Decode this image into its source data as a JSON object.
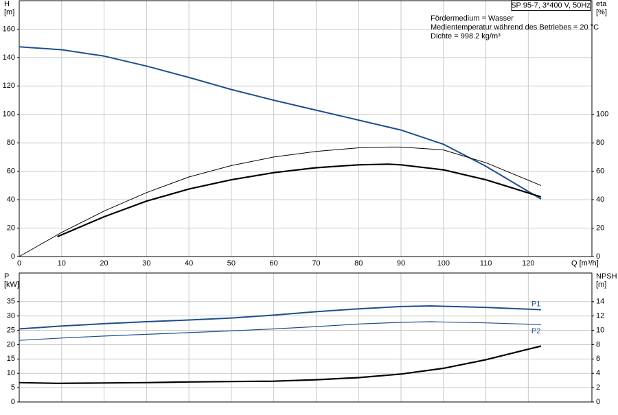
{
  "chart_data": [
    {
      "type": "line",
      "ylabel": [
        "H",
        "[m]"
      ],
      "y2label": [
        "eta",
        "[%]"
      ],
      "xlabel": "Q [m³/h]",
      "info_box": "SP 95-7, 3*400 V, 50Hz",
      "annotations": [
        "Fördermedium = Wasser",
        "Medientemperatur während des Betriebes = 20 °C",
        "Dichte = 998.2 kg/m³"
      ],
      "xlim": [
        0,
        135
      ],
      "xticks": [
        0,
        10,
        20,
        30,
        40,
        50,
        60,
        70,
        80,
        90,
        100,
        110,
        120
      ],
      "ylim": [
        0,
        180
      ],
      "yticks": [
        0,
        20,
        40,
        60,
        80,
        100,
        120,
        140,
        160
      ],
      "y2lim": [
        0,
        180
      ],
      "y2ticks": [
        0,
        20,
        40,
        60,
        80,
        100
      ],
      "grid": true,
      "series": [
        {
          "color": "#1f4e8c",
          "line_width": 2,
          "x": [
            0,
            10,
            20,
            30,
            40,
            50,
            60,
            70,
            80,
            90,
            100,
            110,
            123
          ],
          "values": [
            147.5,
            145.5,
            141,
            134,
            126,
            117.5,
            110,
            103,
            96,
            89,
            79,
            63.5,
            40.5
          ]
        },
        {
          "color": "#000000",
          "line_width": 1,
          "axis": "y2",
          "x": [
            0,
            10,
            20,
            30,
            40,
            50,
            60,
            70,
            80,
            87,
            90,
            100,
            110,
            123
          ],
          "values": [
            0,
            17,
            32,
            45,
            56,
            64,
            70,
            74,
            76.5,
            77,
            77,
            75,
            66,
            50
          ]
        },
        {
          "color": "#000000",
          "line_width": 2.2,
          "axis": "y2",
          "x": [
            9,
            20,
            30,
            40,
            50,
            60,
            70,
            80,
            87,
            90,
            100,
            110,
            123
          ],
          "values": [
            14,
            28,
            39,
            47.5,
            54,
            59,
            62.5,
            64.5,
            65,
            64.5,
            61,
            54,
            42
          ]
        }
      ]
    },
    {
      "type": "line",
      "ylabel": [
        "P",
        "[kW]"
      ],
      "y2label": [
        "NPSH",
        "[m]"
      ],
      "xlim": [
        0,
        135
      ],
      "xticks": [
        0,
        10,
        20,
        30,
        40,
        50,
        60,
        70,
        80,
        90,
        100,
        110,
        120
      ],
      "ylim": [
        0,
        45
      ],
      "yticks": [
        0,
        5,
        10,
        15,
        20,
        25,
        30,
        35
      ],
      "y2lim": [
        0,
        18
      ],
      "y2ticks": [
        0,
        2,
        4,
        6,
        8,
        10,
        12,
        14
      ],
      "grid": true,
      "series": [
        {
          "name": "P1",
          "color": "#1f4e8c",
          "line_width": 2,
          "x": [
            0,
            10,
            20,
            30,
            40,
            50,
            60,
            70,
            80,
            90,
            97,
            110,
            123
          ],
          "values": [
            25.5,
            26.5,
            27.3,
            28,
            28.6,
            29.3,
            30.3,
            31.5,
            32.5,
            33.3,
            33.5,
            33,
            32.2
          ]
        },
        {
          "name": "P2",
          "color": "#1f4e8c",
          "line_width": 1.2,
          "x": [
            0,
            10,
            20,
            30,
            40,
            50,
            60,
            70,
            80,
            90,
            97,
            110,
            123
          ],
          "values": [
            21.5,
            22.3,
            23,
            23.6,
            24.2,
            24.8,
            25.5,
            26.3,
            27.2,
            27.8,
            28,
            27.6,
            27
          ]
        },
        {
          "color": "#000000",
          "line_width": 2.2,
          "axis": "y2",
          "x": [
            0,
            9,
            20,
            30,
            40,
            50,
            60,
            70,
            80,
            90,
            100,
            110,
            123
          ],
          "values": [
            2.7,
            2.6,
            2.65,
            2.7,
            2.8,
            2.85,
            2.9,
            3.1,
            3.4,
            3.9,
            4.7,
            5.9,
            7.8
          ]
        }
      ]
    }
  ]
}
